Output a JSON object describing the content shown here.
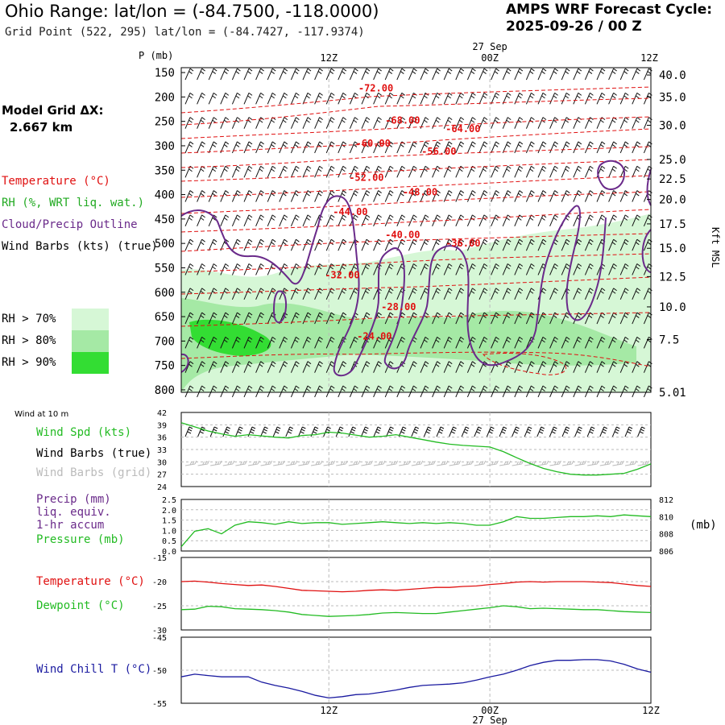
{
  "header": {
    "title": "Ohio Range:  lat/lon = (-84.7500, -118.0000)",
    "subtitle": "Grid Point (522, 295) lat/lon = (-84.7427, -117.9374)",
    "cycle_line1": "AMPS WRF Forecast Cycle:",
    "cycle_line2": "2025-09-26 / 00  Z"
  },
  "model_grid": {
    "line1": "Model Grid ΔX:",
    "line2": "2.667 km"
  },
  "legend": {
    "temperature": "Temperature (°C)",
    "rh": "RH (%, WRT liq. wat.)",
    "cloud": "Cloud/Precip Outline",
    "wind": "Wind Barbs (kts) (true)",
    "rh70": "RH > 70%",
    "rh80": "RH > 80%",
    "rh90": "RH > 90%"
  },
  "colors": {
    "temp": "#e01010",
    "rh_label": "#22aa22",
    "cloud": "#6a2a8a",
    "rh70": "#d6f7d6",
    "rh80": "#a5e9a5",
    "rh90": "#33dd33",
    "series_green": "#22bb22",
    "wind_chill": "#1a1aa0",
    "grid": "#bbbbbb"
  },
  "chart_data": [
    {
      "type": "heatmap",
      "name": "cross-section",
      "y_axis_title": "P (mb)",
      "x_top_date": "27 Sep",
      "time_ticks": [
        "12Z",
        "00Z",
        "12Z"
      ],
      "time_tick_hours": [
        12,
        24,
        36
      ],
      "time_range_hours": [
        1,
        36
      ],
      "pressure_levels": [
        150,
        200,
        250,
        300,
        350,
        400,
        450,
        500,
        550,
        600,
        650,
        700,
        750,
        800
      ],
      "ylim": [
        150,
        800
      ],
      "right_axis_title": "Kft MSL",
      "right_axis": [
        {
          "label": "40.0",
          "p": 155
        },
        {
          "label": "35.0",
          "p": 200
        },
        {
          "label": "30.0",
          "p": 258
        },
        {
          "label": "25.0",
          "p": 328
        },
        {
          "label": "22.5",
          "p": 368
        },
        {
          "label": "20.0",
          "p": 410
        },
        {
          "label": "17.5",
          "p": 460
        },
        {
          "label": "15.0",
          "p": 510
        },
        {
          "label": "12.5",
          "p": 568
        },
        {
          "label": "10.0",
          "p": 630
        },
        {
          "label": "7.5",
          "p": 697
        },
        {
          "label": "5.01",
          "p": 805
        }
      ],
      "temperature_contours": [
        {
          "label": "-72.00",
          "hour": 15.5,
          "p": 182
        },
        {
          "label": "-68.00",
          "hour": 17.5,
          "p": 248
        },
        {
          "label": "-64.00",
          "hour": 22.0,
          "p": 265
        },
        {
          "label": "-60.00",
          "hour": 15.3,
          "p": 295
        },
        {
          "label": "-56.00",
          "hour": 20.2,
          "p": 312
        },
        {
          "label": "-52.00",
          "hour": 14.8,
          "p": 365
        },
        {
          "label": "-48.00",
          "hour": 18.8,
          "p": 395
        },
        {
          "label": "-44.00",
          "hour": 13.6,
          "p": 435
        },
        {
          "label": "-40.00",
          "hour": 17.5,
          "p": 482
        },
        {
          "label": "-36.00",
          "hour": 22.0,
          "p": 500
        },
        {
          "label": "-32.00",
          "hour": 13.0,
          "p": 565
        },
        {
          "label": "-28.00",
          "hour": 17.2,
          "p": 630
        },
        {
          "label": "-24.00",
          "hour": 15.4,
          "p": 690
        }
      ]
    },
    {
      "type": "line",
      "name": "wind",
      "title_small": "Wind at 10 m",
      "labels": [
        "Wind Spd (kts)",
        "Wind Barbs (true)",
        "Wind Barbs (grid)"
      ],
      "ylim": [
        24,
        42
      ],
      "yticks": [
        24,
        27,
        30,
        33,
        36,
        39,
        42
      ],
      "x": [
        1,
        2,
        3,
        4,
        5,
        6,
        7,
        8,
        9,
        10,
        11,
        12,
        13,
        14,
        15,
        16,
        17,
        18,
        19,
        20,
        21,
        22,
        23,
        24,
        25,
        26,
        27,
        28,
        29,
        30,
        31,
        32,
        33,
        34,
        35,
        36
      ],
      "series": [
        {
          "name": "Wind Spd (kts)",
          "values": [
            39.5,
            38.5,
            37.5,
            36.8,
            36.2,
            36.6,
            36.3,
            36.0,
            35.8,
            36.4,
            36.6,
            37.2,
            37.0,
            36.5,
            36.0,
            36.2,
            36.6,
            36.0,
            35.4,
            34.8,
            34.3,
            34.0,
            33.8,
            33.6,
            32.5,
            31.0,
            29.6,
            28.4,
            27.6,
            27.0,
            26.8,
            26.8,
            27.0,
            27.2,
            28.2,
            29.5
          ]
        }
      ]
    },
    {
      "type": "line",
      "name": "precip-pressure",
      "labels": [
        "Precip (mm)",
        "liq. equiv.",
        "1-hr accum",
        "Pressure (mb)"
      ],
      "right_axis_title": "(mb)",
      "ylim_left": [
        0.0,
        2.5
      ],
      "yticks_left": [
        "0.0",
        "0.5",
        "1.0",
        "1.5",
        "2.0",
        "2.5"
      ],
      "ylim_right": [
        806,
        812
      ],
      "yticks_right": [
        "806",
        "808",
        "810",
        "812"
      ],
      "x": [
        1,
        2,
        3,
        4,
        5,
        6,
        7,
        8,
        9,
        10,
        11,
        12,
        13,
        14,
        15,
        16,
        17,
        18,
        19,
        20,
        21,
        22,
        23,
        24,
        25,
        26,
        27,
        28,
        29,
        30,
        31,
        32,
        33,
        34,
        35,
        36
      ],
      "series": [
        {
          "name": "Pressure (mb)",
          "values": [
            806.5,
            808.3,
            808.6,
            808.0,
            809.0,
            809.4,
            809.3,
            809.1,
            809.4,
            809.2,
            809.3,
            809.3,
            809.1,
            809.2,
            809.3,
            809.4,
            809.3,
            809.2,
            809.3,
            809.2,
            809.3,
            809.2,
            809.0,
            809.0,
            809.4,
            810.0,
            809.8,
            809.8,
            809.9,
            810.0,
            810.0,
            810.1,
            810.0,
            810.2,
            810.1,
            810.0
          ]
        }
      ]
    },
    {
      "type": "line",
      "name": "temperature-dewpoint",
      "labels": [
        "Temperature (°C)",
        "Dewpoint (°C)"
      ],
      "ylim": [
        -30,
        -15
      ],
      "yticks": [
        -30,
        -25,
        -20,
        -15
      ],
      "x": [
        1,
        2,
        3,
        4,
        5,
        6,
        7,
        8,
        9,
        10,
        11,
        12,
        13,
        14,
        15,
        16,
        17,
        18,
        19,
        20,
        21,
        22,
        23,
        24,
        25,
        26,
        27,
        28,
        29,
        30,
        31,
        32,
        33,
        34,
        35,
        36
      ],
      "series": [
        {
          "name": "Temperature (°C)",
          "values": [
            -20.0,
            -19.9,
            -20.1,
            -20.4,
            -20.6,
            -20.8,
            -20.7,
            -21.0,
            -21.4,
            -21.8,
            -21.9,
            -22.0,
            -22.1,
            -22.0,
            -21.8,
            -21.7,
            -21.8,
            -21.6,
            -21.4,
            -21.2,
            -21.2,
            -21.0,
            -20.9,
            -20.6,
            -20.4,
            -20.1,
            -20.0,
            -20.1,
            -20.0,
            -20.0,
            -20.0,
            -20.1,
            -20.2,
            -20.5,
            -20.8,
            -21.0
          ]
        },
        {
          "name": "Dewpoint (°C)",
          "values": [
            -25.8,
            -25.7,
            -25.1,
            -25.2,
            -25.6,
            -25.7,
            -25.8,
            -26.0,
            -26.3,
            -26.8,
            -27.0,
            -27.2,
            -27.1,
            -27.0,
            -26.8,
            -26.5,
            -26.4,
            -26.5,
            -26.6,
            -26.6,
            -26.3,
            -26.0,
            -25.7,
            -25.4,
            -25.0,
            -25.2,
            -25.6,
            -25.5,
            -25.6,
            -25.7,
            -25.8,
            -25.8,
            -26.0,
            -26.2,
            -26.3,
            -26.4
          ]
        }
      ]
    },
    {
      "type": "line",
      "name": "wind-chill",
      "labels": [
        "Wind Chill T (°C)"
      ],
      "ylim": [
        -55,
        -45
      ],
      "yticks": [
        -55,
        -50,
        -45
      ],
      "x_bottom_date": "27 Sep",
      "x": [
        1,
        2,
        3,
        4,
        5,
        6,
        7,
        8,
        9,
        10,
        11,
        12,
        13,
        14,
        15,
        16,
        17,
        18,
        19,
        20,
        21,
        22,
        23,
        24,
        25,
        26,
        27,
        28,
        29,
        30,
        31,
        32,
        33,
        34,
        35,
        36
      ],
      "series": [
        {
          "name": "Wind Chill T (°C)",
          "values": [
            -51.0,
            -50.6,
            -50.8,
            -51.0,
            -51.0,
            -51.0,
            -51.8,
            -52.3,
            -52.7,
            -53.2,
            -53.8,
            -54.2,
            -54.0,
            -53.7,
            -53.6,
            -53.3,
            -53.0,
            -52.6,
            -52.3,
            -52.2,
            -52.1,
            -51.9,
            -51.5,
            -51.0,
            -50.6,
            -50.0,
            -49.3,
            -48.8,
            -48.5,
            -48.5,
            -48.4,
            -48.4,
            -48.6,
            -49.1,
            -49.8,
            -50.3
          ]
        }
      ]
    }
  ]
}
